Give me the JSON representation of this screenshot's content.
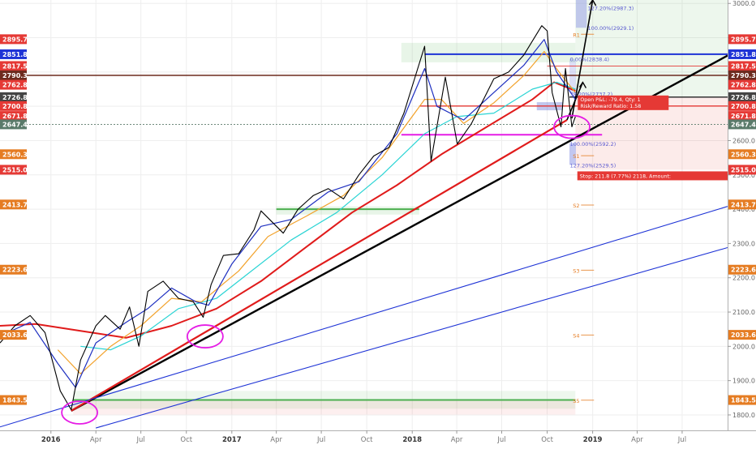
{
  "chart_data": {
    "type": "line",
    "title": "",
    "xlabel": "",
    "ylabel": "",
    "x_range": [
      "2015-09-20",
      "2019-10-01"
    ],
    "ylim": [
      1755,
      3010
    ],
    "grid": true,
    "x_ticks": [
      {
        "date": "2016-01-01",
        "label": "2016",
        "bold": true
      },
      {
        "date": "2016-04-01",
        "label": "Apr",
        "bold": false
      },
      {
        "date": "2016-07-01",
        "label": "Jul",
        "bold": false
      },
      {
        "date": "2016-10-01",
        "label": "Oct",
        "bold": false
      },
      {
        "date": "2017-01-01",
        "label": "2017",
        "bold": true
      },
      {
        "date": "2017-04-01",
        "label": "Apr",
        "bold": false
      },
      {
        "date": "2017-07-01",
        "label": "Jul",
        "bold": false
      },
      {
        "date": "2017-10-01",
        "label": "Oct",
        "bold": false
      },
      {
        "date": "2018-01-01",
        "label": "2018",
        "bold": true
      },
      {
        "date": "2018-04-01",
        "label": "Apr",
        "bold": false
      },
      {
        "date": "2018-07-01",
        "label": "Jul",
        "bold": false
      },
      {
        "date": "2018-10-01",
        "label": "Oct",
        "bold": false
      },
      {
        "date": "2019-01-01",
        "label": "2019",
        "bold": true
      },
      {
        "date": "2019-04-01",
        "label": "Apr",
        "bold": false
      },
      {
        "date": "2019-07-01",
        "label": "Jul",
        "bold": false
      }
    ],
    "y_ticks": [
      1800,
      1900,
      2000,
      2100,
      2200,
      2300,
      2400,
      2500,
      2600,
      2700,
      2800,
      2900,
      3000
    ],
    "y_tick_labels": [
      "1800.0",
      "1900.0",
      "2000.0",
      "2100.0",
      "2200.0",
      "2300.0",
      "2400.0",
      "2500.0",
      "2600.0",
      "2700.0",
      "2800.0",
      "2900.0",
      "3000.0"
    ],
    "price_badges": [
      {
        "value": 2895.7,
        "label": "2895.7",
        "color": "#e53935"
      },
      {
        "value": 2851.8,
        "label": "2851.8",
        "color": "#1e33d6"
      },
      {
        "value": 2817.5,
        "label": "2817.5",
        "color": "#e53935"
      },
      {
        "value": 2790.3,
        "label": "2790.3",
        "color": "#6d2b1f"
      },
      {
        "value": 2762.8,
        "label": "2762.8",
        "color": "#e53935"
      },
      {
        "value": 2726.8,
        "label": "2726.8",
        "color": "#444444"
      },
      {
        "value": 2700.8,
        "label": "2700.8",
        "color": "#e53935"
      },
      {
        "value": 2671.8,
        "label": "2671.8",
        "color": "#e53935"
      },
      {
        "value": 2647.4,
        "label": "2647.4",
        "color": "#5a7a6a"
      },
      {
        "value": 2560.3,
        "label": "2560.3",
        "color": "#e57c22"
      },
      {
        "value": 2515.0,
        "label": "2515.0",
        "color": "#e53935"
      },
      {
        "value": 2413.7,
        "label": "2413.7",
        "color": "#e57c22"
      },
      {
        "value": 2223.6,
        "label": "2223.6",
        "color": "#e57c22"
      },
      {
        "value": 2033.6,
        "label": "2033.6",
        "color": "#e57c22"
      },
      {
        "value": 1843.5,
        "label": "1843.5",
        "color": "#e57c22"
      }
    ],
    "series": [
      {
        "name": "",
        "role": "price",
        "color": "#000000",
        "points": [
          [
            "2015-09-20",
            2010
          ],
          [
            "2015-10-20",
            2060
          ],
          [
            "2015-11-20",
            2090
          ],
          [
            "2015-12-20",
            2040
          ],
          [
            "2016-01-20",
            1870
          ],
          [
            "2016-02-11",
            1815
          ],
          [
            "2016-03-01",
            1960
          ],
          [
            "2016-04-01",
            2060
          ],
          [
            "2016-04-20",
            2090
          ],
          [
            "2016-05-20",
            2050
          ],
          [
            "2016-06-08",
            2115
          ],
          [
            "2016-06-27",
            2000
          ],
          [
            "2016-07-15",
            2160
          ],
          [
            "2016-08-15",
            2190
          ],
          [
            "2016-09-15",
            2140
          ],
          [
            "2016-10-15",
            2130
          ],
          [
            "2016-11-04",
            2085
          ],
          [
            "2016-11-20",
            2180
          ],
          [
            "2016-12-15",
            2265
          ],
          [
            "2017-01-15",
            2270
          ],
          [
            "2017-02-15",
            2340
          ],
          [
            "2017-03-01",
            2395
          ],
          [
            "2017-04-15",
            2330
          ],
          [
            "2017-05-15",
            2400
          ],
          [
            "2017-06-15",
            2440
          ],
          [
            "2017-07-15",
            2460
          ],
          [
            "2017-08-15",
            2430
          ],
          [
            "2017-09-15",
            2500
          ],
          [
            "2017-10-15",
            2555
          ],
          [
            "2017-11-15",
            2580
          ],
          [
            "2017-12-15",
            2680
          ],
          [
            "2018-01-26",
            2875
          ],
          [
            "2018-02-08",
            2540
          ],
          [
            "2018-03-09",
            2785
          ],
          [
            "2018-04-02",
            2590
          ],
          [
            "2018-05-01",
            2650
          ],
          [
            "2018-06-15",
            2780
          ],
          [
            "2018-07-15",
            2800
          ],
          [
            "2018-08-15",
            2850
          ],
          [
            "2018-09-20",
            2935
          ],
          [
            "2018-10-01",
            2920
          ],
          [
            "2018-10-11",
            2740
          ],
          [
            "2018-10-29",
            2640
          ],
          [
            "2018-11-07",
            2810
          ],
          [
            "2018-11-20",
            2640
          ],
          [
            "2018-11-27",
            2670
          ]
        ]
      },
      {
        "name": "",
        "role": "fast-ma",
        "color": "#1e2fc0",
        "points": [
          [
            "2015-09-20",
            2030
          ],
          [
            "2015-11-20",
            2070
          ],
          [
            "2016-01-15",
            1950
          ],
          [
            "2016-02-20",
            1880
          ],
          [
            "2016-04-01",
            2010
          ],
          [
            "2016-06-01",
            2070
          ],
          [
            "2016-07-15",
            2110
          ],
          [
            "2016-09-01",
            2170
          ],
          [
            "2016-10-20",
            2130
          ],
          [
            "2016-11-15",
            2120
          ],
          [
            "2017-01-01",
            2240
          ],
          [
            "2017-03-01",
            2350
          ],
          [
            "2017-05-01",
            2370
          ],
          [
            "2017-07-15",
            2450
          ],
          [
            "2017-09-15",
            2480
          ],
          [
            "2017-12-01",
            2620
          ],
          [
            "2018-01-26",
            2810
          ],
          [
            "2018-02-20",
            2700
          ],
          [
            "2018-04-15",
            2660
          ],
          [
            "2018-06-15",
            2740
          ],
          [
            "2018-08-15",
            2820
          ],
          [
            "2018-09-25",
            2895
          ],
          [
            "2018-10-20",
            2800
          ],
          [
            "2018-11-27",
            2720
          ]
        ]
      },
      {
        "name": "",
        "role": "medium-ma",
        "color": "#f2a22b",
        "points": [
          [
            "2016-01-15",
            1990
          ],
          [
            "2016-03-01",
            1920
          ],
          [
            "2016-05-01",
            2000
          ],
          [
            "2016-07-01",
            2060
          ],
          [
            "2016-09-01",
            2140
          ],
          [
            "2016-11-01",
            2130
          ],
          [
            "2017-01-15",
            2220
          ],
          [
            "2017-03-15",
            2320
          ],
          [
            "2017-06-01",
            2380
          ],
          [
            "2017-08-15",
            2440
          ],
          [
            "2017-11-01",
            2550
          ],
          [
            "2018-01-26",
            2720
          ],
          [
            "2018-03-01",
            2720
          ],
          [
            "2018-04-15",
            2650
          ],
          [
            "2018-06-15",
            2710
          ],
          [
            "2018-08-15",
            2790
          ],
          [
            "2018-09-25",
            2860
          ],
          [
            "2018-10-25",
            2800
          ],
          [
            "2018-11-27",
            2740
          ]
        ]
      },
      {
        "name": "",
        "role": "slow-ma",
        "color": "#2ad4d4",
        "points": [
          [
            "2016-03-01",
            2000
          ],
          [
            "2016-05-01",
            1990
          ],
          [
            "2016-07-01",
            2030
          ],
          [
            "2016-09-15",
            2110
          ],
          [
            "2016-12-01",
            2140
          ],
          [
            "2017-02-01",
            2210
          ],
          [
            "2017-05-01",
            2310
          ],
          [
            "2017-08-01",
            2390
          ],
          [
            "2017-11-01",
            2500
          ],
          [
            "2018-01-26",
            2620
          ],
          [
            "2018-04-01",
            2670
          ],
          [
            "2018-06-15",
            2680
          ],
          [
            "2018-09-01",
            2750
          ],
          [
            "2018-10-20",
            2770
          ],
          [
            "2018-11-27",
            2750
          ]
        ]
      },
      {
        "name": "",
        "role": "long-ma",
        "color": "#e01b1b",
        "points": [
          [
            "2015-09-20",
            2060
          ],
          [
            "2015-12-01",
            2065
          ],
          [
            "2016-03-01",
            2045
          ],
          [
            "2016-06-01",
            2025
          ],
          [
            "2016-09-01",
            2060
          ],
          [
            "2016-12-01",
            2110
          ],
          [
            "2017-03-01",
            2190
          ],
          [
            "2017-06-01",
            2290
          ],
          [
            "2017-09-01",
            2390
          ],
          [
            "2017-12-01",
            2470
          ],
          [
            "2018-03-01",
            2560
          ],
          [
            "2018-06-01",
            2640
          ],
          [
            "2018-09-01",
            2720
          ],
          [
            "2018-10-15",
            2770
          ],
          [
            "2018-11-27",
            2745
          ]
        ]
      }
    ],
    "trend_lines": [
      {
        "role": "main-trend",
        "color": "#000000",
        "width": 2.4,
        "from": [
          "2016-02-11",
          1812
        ],
        "to": [
          "2019-10-01",
          2848
        ]
      },
      {
        "role": "ma-trend",
        "color": "#e01b1b",
        "width": 2.2,
        "from": [
          "2016-02-11",
          1812
        ],
        "to": [
          "2018-11-10",
          2660
        ]
      },
      {
        "role": "channel-upper",
        "color": "#1e33d6",
        "width": 1.1,
        "from": [
          "2015-09-20",
          1765
        ],
        "to": [
          "2019-10-01",
          2408
        ]
      },
      {
        "role": "channel-lower",
        "color": "#1e33d6",
        "width": 1.1,
        "from": [
          "2016-04-01",
          1762
        ],
        "to": [
          "2019-10-01",
          2288
        ]
      },
      {
        "role": "projection-1",
        "color": "#000000",
        "width": 1.6,
        "from": [
          "2018-11-10",
          2660
        ],
        "to": [
          "2018-12-12",
          2770
        ]
      },
      {
        "role": "projection-2",
        "color": "#000000",
        "width": 1.6,
        "from": [
          "2018-11-20",
          2665
        ],
        "to": [
          "2019-01-01",
          3010
        ]
      }
    ],
    "horizontal_levels": [
      {
        "value": 2851.8,
        "color": "#1e33d6",
        "width": 2,
        "from": "2018-01-26",
        "to": "2019-10-01"
      },
      {
        "value": 2790.3,
        "color": "#6d2b1f",
        "width": 1.5,
        "from": "2015-09-20",
        "to": "2019-10-01"
      },
      {
        "value": 2817.5,
        "color": "#e53935",
        "width": 0.8,
        "from": "2018-10-01",
        "to": "2019-10-01"
      },
      {
        "value": 2700.8,
        "color": "#e53935",
        "width": 1.4,
        "from": "2018-01-15",
        "to": "2019-10-01"
      },
      {
        "value": 2726.8,
        "color": "#222222",
        "width": 1.4,
        "from": "2018-11-15",
        "to": "2019-10-01"
      },
      {
        "value": 2647.4,
        "color": "#5a7a6a",
        "width": 0.8,
        "dashed": true,
        "from": "2015-09-20",
        "to": "2019-10-01"
      },
      {
        "value": 2617,
        "color": "#e51ce5",
        "width": 2,
        "from": "2017-12-10",
        "to": "2019-01-20"
      },
      {
        "value": 2400,
        "color": "#4caf50",
        "width": 2,
        "from": "2017-04-01",
        "to": "2018-01-15"
      },
      {
        "value": 1843.5,
        "color": "#4caf50",
        "width": 2,
        "from": "2016-02-15",
        "to": "2018-11-27"
      }
    ],
    "fib_levels": [
      {
        "value": 2838.4,
        "label": "0.00%(2838.4)"
      },
      {
        "value": 2737.2,
        "label": "38.20%(2737.2)"
      },
      {
        "value": 2592.2,
        "label": "100.00%(2592.2)"
      },
      {
        "value": 2529.5,
        "label": "127.20%(2529.5)"
      },
      {
        "value": 2929.1,
        "label": "100.00%(2929.1)"
      },
      {
        "value": 2987.3,
        "label": "127.20%(2987.3)"
      }
    ],
    "pivot_levels": [
      {
        "value": 2910,
        "label": "R1"
      },
      {
        "value": 2556,
        "label": "S1"
      },
      {
        "value": 2412,
        "label": "S2"
      },
      {
        "value": 2222,
        "label": "S3"
      },
      {
        "value": 2033,
        "label": "S4"
      },
      {
        "value": 1843,
        "label": "S5"
      }
    ],
    "position": {
      "open_pnl": "Open P&L: -79.4, Qty: 1",
      "risk_reward": "Risk/Reward Ratio: 1.58",
      "stop": "Stop: 211.8 (7.77%) 2118, Amount:"
    },
    "annotations": [
      {
        "type": "circle",
        "color": "#e51ce5",
        "center": [
          "2016-02-28",
          1807
        ]
      },
      {
        "type": "circle",
        "color": "#e51ce5",
        "center": [
          "2016-11-08",
          2029
        ]
      },
      {
        "type": "circle",
        "color": "#e51ce5",
        "center": [
          "2018-11-20",
          2640
        ]
      }
    ]
  }
}
